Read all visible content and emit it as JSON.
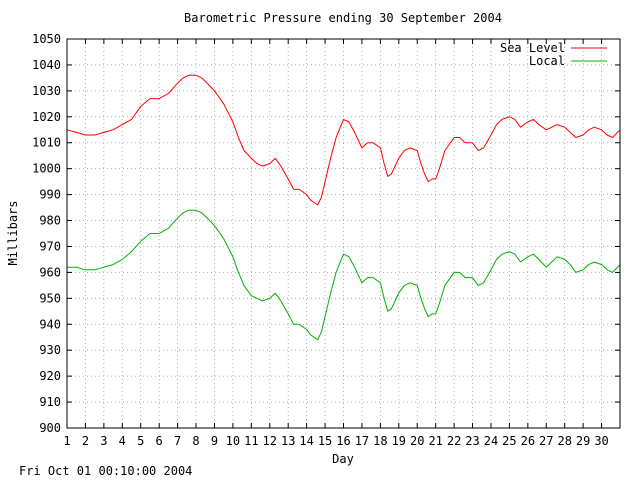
{
  "chart_data": {
    "type": "line",
    "title": "Barometric Pressure ending 30 September 2004",
    "xlabel": "Day",
    "ylabel": "Millibars",
    "xlim": [
      1,
      31
    ],
    "ylim": [
      900,
      1050
    ],
    "y_ticks": [
      900,
      910,
      920,
      930,
      940,
      950,
      960,
      970,
      980,
      990,
      1000,
      1010,
      1020,
      1030,
      1040,
      1050
    ],
    "x_ticks": [
      "1",
      "2",
      "3",
      "4",
      "5",
      "6",
      "7",
      "8",
      "9",
      "10",
      "11",
      "12",
      "13",
      "14",
      "15",
      "16",
      "17",
      "18",
      "19",
      "20",
      "21",
      "22",
      "23",
      "24",
      "25",
      "26",
      "27",
      "28",
      "29",
      "30"
    ],
    "grid": true,
    "legend_position": "top-right",
    "colors": {
      "sea_level": "#ff0000",
      "local": "#00b000"
    },
    "series": [
      {
        "name": "Sea Level",
        "x": [
          1,
          1.5,
          2,
          2.5,
          3,
          3.5,
          4,
          4.5,
          5,
          5.5,
          6,
          6.5,
          7,
          7.3,
          7.6,
          8,
          8.3,
          8.6,
          9,
          9.5,
          10,
          10.3,
          10.6,
          11,
          11.3,
          11.6,
          12,
          12.3,
          12.6,
          13,
          13.3,
          13.6,
          14,
          14.2,
          14.4,
          14.6,
          14.8,
          15,
          15.3,
          15.6,
          16,
          16.3,
          16.6,
          17,
          17.3,
          17.6,
          18,
          18.2,
          18.4,
          18.6,
          18.8,
          19,
          19.3,
          19.6,
          20,
          20.2,
          20.4,
          20.6,
          20.8,
          21,
          21.2,
          21.5,
          22,
          22.3,
          22.6,
          23,
          23.3,
          23.6,
          24,
          24.3,
          24.6,
          25,
          25.3,
          25.6,
          26,
          26.3,
          26.6,
          27,
          27.3,
          27.6,
          28,
          28.3,
          28.6,
          29,
          29.3,
          29.6,
          30,
          30.3,
          30.6,
          31
        ],
        "values": [
          1015,
          1014,
          1013,
          1013,
          1014,
          1015,
          1017,
          1019,
          1024,
          1027,
          1027,
          1029,
          1033,
          1035,
          1036,
          1036,
          1035,
          1033,
          1030,
          1025,
          1018,
          1012,
          1007,
          1004,
          1002,
          1001,
          1002,
          1004,
          1001,
          996,
          992,
          992,
          990,
          988,
          987,
          986,
          989,
          995,
          1004,
          1012,
          1019,
          1018,
          1014,
          1008,
          1010,
          1010,
          1008,
          1002,
          997,
          998,
          1001,
          1004,
          1007,
          1008,
          1007,
          1002,
          998,
          995,
          996,
          996,
          1000,
          1007,
          1012,
          1012,
          1010,
          1010,
          1007,
          1008,
          1013,
          1017,
          1019,
          1020,
          1019,
          1016,
          1018,
          1019,
          1017,
          1015,
          1016,
          1017,
          1016,
          1014,
          1012,
          1013,
          1015,
          1016,
          1015,
          1013,
          1012,
          1015
        ]
      },
      {
        "name": "Local",
        "x": [
          1,
          1.5,
          2,
          2.5,
          3,
          3.5,
          4,
          4.5,
          5,
          5.5,
          6,
          6.5,
          7,
          7.3,
          7.6,
          8,
          8.3,
          8.6,
          9,
          9.5,
          10,
          10.3,
          10.6,
          11,
          11.3,
          11.6,
          12,
          12.3,
          12.6,
          13,
          13.3,
          13.6,
          14,
          14.2,
          14.4,
          14.6,
          14.8,
          15,
          15.3,
          15.6,
          16,
          16.3,
          16.6,
          17,
          17.3,
          17.6,
          18,
          18.2,
          18.4,
          18.6,
          18.8,
          19,
          19.3,
          19.6,
          20,
          20.2,
          20.4,
          20.6,
          20.8,
          21,
          21.2,
          21.5,
          22,
          22.3,
          22.6,
          23,
          23.3,
          23.6,
          24,
          24.3,
          24.6,
          25,
          25.3,
          25.6,
          26,
          26.3,
          26.6,
          27,
          27.3,
          27.6,
          28,
          28.3,
          28.6,
          29,
          29.3,
          29.6,
          30,
          30.3,
          30.6,
          31
        ],
        "values": [
          962,
          962,
          961,
          961,
          962,
          963,
          965,
          968,
          972,
          975,
          975,
          977,
          981,
          983,
          984,
          984,
          983,
          981,
          978,
          973,
          966,
          960,
          955,
          951,
          950,
          949,
          950,
          952,
          949,
          944,
          940,
          940,
          938,
          936,
          935,
          934,
          937,
          943,
          952,
          960,
          967,
          966,
          962,
          956,
          958,
          958,
          956,
          950,
          945,
          946,
          949,
          952,
          955,
          956,
          955,
          950,
          946,
          943,
          944,
          944,
          948,
          955,
          960,
          960,
          958,
          958,
          955,
          956,
          961,
          965,
          967,
          968,
          967,
          964,
          966,
          967,
          965,
          962,
          964,
          966,
          965,
          963,
          960,
          961,
          963,
          964,
          963,
          961,
          960,
          963
        ]
      }
    ]
  },
  "footer_timestamp": "Fri Oct 01 00:10:00 2004"
}
